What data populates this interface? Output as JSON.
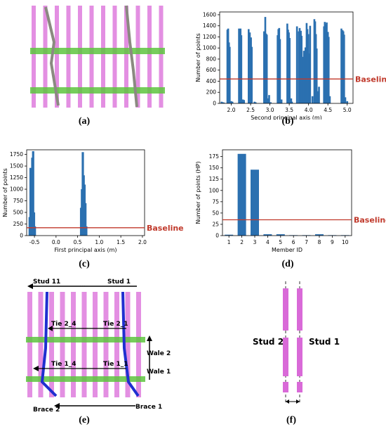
{
  "captions": {
    "a": "(a)",
    "b": "(b)",
    "c": "(c)",
    "d": "(d)",
    "e": "(e)",
    "f": "(f)"
  },
  "colors": {
    "bar": "#2b70b0",
    "baseline": "#c0392b",
    "stud": "#d96ad8",
    "wale": "#5ec43f",
    "brace_gray": "#8a8a80",
    "brace_blue": "#1f2fd0"
  },
  "chart_data": [
    {
      "panel": "b",
      "type": "bar",
      "xlabel": "Second principal axis (m)",
      "ylabel": "Number of points",
      "xticks": [
        "2.0",
        "2.5",
        "3.0",
        "3.5",
        "4.0",
        "4.5",
        "5.0"
      ],
      "yticks": [
        "0",
        "200",
        "400",
        "600",
        "800",
        "1000",
        "1200",
        "1400",
        "1600"
      ],
      "xlim": [
        1.7,
        5.15
      ],
      "ylim": [
        0,
        1650
      ],
      "baseline": {
        "label": "Baseline",
        "value": 440
      },
      "x": [
        1.75,
        1.78,
        1.81,
        1.9,
        1.92,
        1.94,
        1.96,
        2.0,
        2.03,
        2.2,
        2.22,
        2.24,
        2.26,
        2.3,
        2.33,
        2.45,
        2.48,
        2.51,
        2.53,
        2.6,
        2.63,
        2.85,
        2.88,
        2.9,
        2.92,
        2.96,
        2.98,
        3.02,
        3.2,
        3.22,
        3.24,
        3.26,
        3.3,
        3.45,
        3.47,
        3.49,
        3.51,
        3.55,
        3.57,
        3.7,
        3.75,
        3.77,
        3.8,
        3.82,
        3.86,
        3.88,
        3.92,
        3.95,
        3.97,
        3.99,
        4.02,
        4.04,
        4.1,
        4.15,
        4.17,
        4.19,
        4.21,
        4.25,
        4.27,
        4.4,
        4.42,
        4.45,
        4.47,
        4.5,
        4.52,
        4.55,
        4.85,
        4.88,
        4.9,
        4.92,
        4.95,
        5.0
      ],
      "values": [
        30,
        20,
        15,
        1330,
        1350,
        1100,
        1020,
        40,
        30,
        1350,
        1310,
        1350,
        1230,
        70,
        60,
        1340,
        1280,
        1190,
        1020,
        30,
        20,
        1300,
        1560,
        1260,
        1240,
        90,
        150,
        20,
        1230,
        1340,
        1360,
        1160,
        70,
        1440,
        1330,
        1280,
        1180,
        90,
        30,
        1390,
        1300,
        1360,
        1310,
        1220,
        840,
        950,
        1010,
        1450,
        1340,
        1250,
        900,
        1400,
        130,
        1520,
        1480,
        1250,
        990,
        220,
        300,
        1390,
        1470,
        1430,
        1460,
        1290,
        1200,
        130,
        1350,
        1320,
        1300,
        1240,
        110,
        40
      ]
    },
    {
      "panel": "c",
      "type": "bar",
      "xlabel": "First principal axis (m)",
      "ylabel": "Number of points",
      "xticks": [
        "-0.5",
        "0.0",
        "0.5",
        "1.0",
        "1.5",
        "2.0"
      ],
      "yticks": [
        "0",
        "250",
        "500",
        "750",
        "1000",
        "1250",
        "1500",
        "1750"
      ],
      "xlim": [
        -0.68,
        2.05
      ],
      "ylim": [
        0,
        1850
      ],
      "baseline": {
        "label": "Baseline",
        "value": 170
      },
      "x": [
        -0.61,
        -0.59,
        -0.57,
        -0.55,
        -0.53,
        -0.51,
        -0.49,
        0.58,
        0.6,
        0.62,
        0.64,
        0.66,
        0.68,
        0.7
      ],
      "values": [
        400,
        1460,
        1000,
        1680,
        1820,
        500,
        200,
        600,
        1000,
        1800,
        1300,
        1100,
        700,
        200
      ]
    },
    {
      "panel": "d",
      "type": "bar",
      "xlabel": "Member ID",
      "ylabel": "Number of points (HP)",
      "categories": [
        "1",
        "2",
        "3",
        "4",
        "5",
        "6",
        "7",
        "8",
        "9",
        "10"
      ],
      "yticks": [
        "0",
        "25",
        "50",
        "75",
        "100",
        "125",
        "150",
        "175"
      ],
      "ylim": [
        0,
        190
      ],
      "baseline": {
        "label": "Baseline",
        "value": 35
      },
      "values": [
        2,
        181,
        146,
        3,
        3,
        1,
        1,
        3,
        1,
        1
      ]
    }
  ],
  "diagram_e": {
    "stud_first": "Stud 1",
    "stud_last": "Stud 11",
    "tie_upper_right": "Tie 2_1",
    "tie_upper_left": "Tie 2_4",
    "tie_lower_right": "Tie 1_1",
    "tie_lower_left": "Tie 1_4",
    "wale_top": "Wale 2",
    "wale_bottom": "Wale 1",
    "brace_right": "Brace 1",
    "brace_left": "Brace 2",
    "dots": "···"
  },
  "diagram_f": {
    "left": "Stud 2",
    "right": "Stud 1"
  }
}
